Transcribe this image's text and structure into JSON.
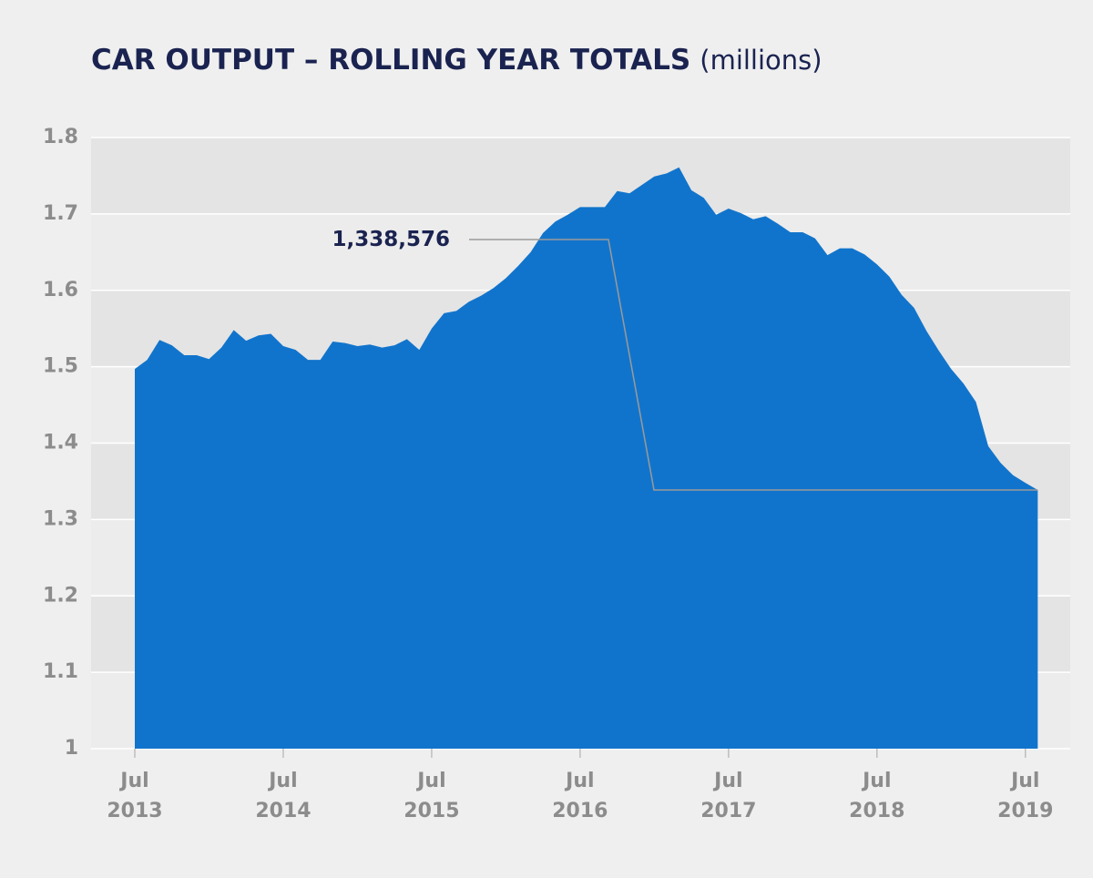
{
  "chart_data": {
    "type": "area",
    "title": "CAR OUTPUT – ROLLING YEAR TOTALS",
    "subtitle": "(millions)",
    "x": [
      "2013-07",
      "2013-08",
      "2013-09",
      "2013-10",
      "2013-11",
      "2013-12",
      "2014-01",
      "2014-02",
      "2014-03",
      "2014-04",
      "2014-05",
      "2014-06",
      "2014-07",
      "2014-08",
      "2014-09",
      "2014-10",
      "2014-11",
      "2014-12",
      "2015-01",
      "2015-02",
      "2015-03",
      "2015-04",
      "2015-05",
      "2015-06",
      "2015-07",
      "2015-08",
      "2015-09",
      "2015-10",
      "2015-11",
      "2015-12",
      "2016-01",
      "2016-02",
      "2016-03",
      "2016-04",
      "2016-05",
      "2016-06",
      "2016-07",
      "2016-08",
      "2016-09",
      "2016-10",
      "2016-11",
      "2016-12",
      "2017-01",
      "2017-02",
      "2017-03",
      "2017-04",
      "2017-05",
      "2017-06",
      "2017-07",
      "2017-08",
      "2017-09",
      "2017-10",
      "2017-11",
      "2017-12",
      "2018-01",
      "2018-02",
      "2018-03",
      "2018-04",
      "2018-05",
      "2018-06",
      "2018-07",
      "2018-08",
      "2018-09",
      "2018-10",
      "2018-11",
      "2018-12",
      "2019-01",
      "2019-02",
      "2019-03",
      "2019-04",
      "2019-05",
      "2019-06",
      "2019-07",
      "2019-08"
    ],
    "series": [
      {
        "name": "Car output",
        "color": "#1174cc",
        "values": [
          1.497,
          1.509,
          1.535,
          1.528,
          1.515,
          1.515,
          1.51,
          1.525,
          1.548,
          1.534,
          1.541,
          1.543,
          1.527,
          1.522,
          1.509,
          1.509,
          1.533,
          1.531,
          1.527,
          1.529,
          1.525,
          1.528,
          1.536,
          1.522,
          1.55,
          1.57,
          1.573,
          1.585,
          1.593,
          1.603,
          1.616,
          1.632,
          1.65,
          1.675,
          1.69,
          1.699,
          1.709,
          1.709,
          1.709,
          1.73,
          1.727,
          1.738,
          1.749,
          1.753,
          1.761,
          1.731,
          1.721,
          1.699,
          1.707,
          1.701,
          1.693,
          1.697,
          1.687,
          1.676,
          1.676,
          1.668,
          1.646,
          1.655,
          1.655,
          1.647,
          1.634,
          1.618,
          1.594,
          1.577,
          1.547,
          1.521,
          1.497,
          1.478,
          1.454,
          1.396,
          1.374,
          1.358,
          1.348,
          1.338576
        ]
      }
    ],
    "ylim": [
      1,
      1.8
    ],
    "yticks": [
      1,
      1.1,
      1.2,
      1.3,
      1.4,
      1.5,
      1.6,
      1.7,
      1.8
    ],
    "xticks": [
      {
        "value": "2013-07",
        "label": [
          "Jul",
          "2013"
        ]
      },
      {
        "value": "2014-07",
        "label": [
          "Jul",
          "2014"
        ]
      },
      {
        "value": "2015-07",
        "label": [
          "Jul",
          "2015"
        ]
      },
      {
        "value": "2016-07",
        "label": [
          "Jul",
          "2016"
        ]
      },
      {
        "value": "2017-07",
        "label": [
          "Jul",
          "2017"
        ]
      },
      {
        "value": "2018-07",
        "label": [
          "Jul",
          "2018"
        ]
      },
      {
        "value": "2019-07",
        "label": [
          "Jul",
          "2019"
        ]
      }
    ],
    "grid": true,
    "annotation": {
      "label": "1,338,576",
      "x": "2019-08",
      "value": 1.338576
    }
  }
}
